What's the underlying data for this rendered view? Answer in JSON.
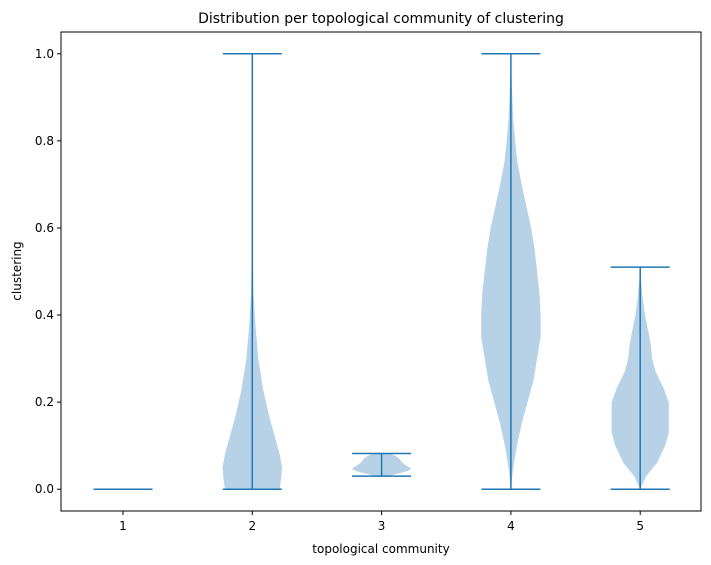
{
  "chart_data": {
    "type": "violin",
    "title": "Distribution per topological community of clustering",
    "xlabel": "topological community",
    "ylabel": "clustering",
    "categories": [
      "1",
      "2",
      "3",
      "4",
      "5"
    ],
    "ylim": [
      -0.05,
      1.05
    ],
    "yticks": [
      0.0,
      0.2,
      0.4,
      0.6,
      0.8,
      1.0
    ],
    "ytick_labels": [
      "0.0",
      "0.2",
      "0.4",
      "0.6",
      "0.8",
      "1.0"
    ],
    "grid": false,
    "colors": {
      "violin_fill": "#b7d1e6",
      "line": "#1f77b4"
    },
    "violins": [
      {
        "category": "1",
        "min": 0.0,
        "max": 0.0,
        "profile": []
      },
      {
        "category": "2",
        "min": 0.0,
        "max": 1.0,
        "profile": [
          [
            0.0,
            0.23
          ],
          [
            0.02,
            0.24
          ],
          [
            0.05,
            0.25
          ],
          [
            0.08,
            0.23
          ],
          [
            0.12,
            0.19
          ],
          [
            0.17,
            0.14
          ],
          [
            0.23,
            0.09
          ],
          [
            0.3,
            0.05
          ],
          [
            0.38,
            0.025
          ],
          [
            0.45,
            0.01
          ],
          [
            0.55,
            0.004
          ],
          [
            0.7,
            0.0015
          ],
          [
            0.85,
            0.0005
          ],
          [
            1.0,
            0.0
          ]
        ]
      },
      {
        "category": "3",
        "min": 0.03,
        "max": 0.082,
        "profile": [
          [
            0.03,
            0.05
          ],
          [
            0.036,
            0.14
          ],
          [
            0.042,
            0.22
          ],
          [
            0.048,
            0.25
          ],
          [
            0.054,
            0.21
          ],
          [
            0.062,
            0.17
          ],
          [
            0.07,
            0.15
          ],
          [
            0.076,
            0.12
          ],
          [
            0.082,
            0.07
          ]
        ]
      },
      {
        "category": "4",
        "min": 0.0,
        "max": 1.0,
        "profile": [
          [
            0.0,
            0.0
          ],
          [
            0.05,
            0.02
          ],
          [
            0.1,
            0.05
          ],
          [
            0.15,
            0.09
          ],
          [
            0.2,
            0.14
          ],
          [
            0.25,
            0.19
          ],
          [
            0.3,
            0.22
          ],
          [
            0.35,
            0.25
          ],
          [
            0.4,
            0.25
          ],
          [
            0.45,
            0.24
          ],
          [
            0.5,
            0.22
          ],
          [
            0.55,
            0.2
          ],
          [
            0.6,
            0.17
          ],
          [
            0.65,
            0.13
          ],
          [
            0.7,
            0.09
          ],
          [
            0.75,
            0.055
          ],
          [
            0.8,
            0.035
          ],
          [
            0.85,
            0.02
          ],
          [
            0.9,
            0.012
          ],
          [
            0.95,
            0.005
          ],
          [
            1.0,
            0.0
          ]
        ]
      },
      {
        "category": "5",
        "min": 0.0,
        "max": 0.51,
        "profile": [
          [
            0.0,
            0.0
          ],
          [
            0.03,
            0.05
          ],
          [
            0.06,
            0.14
          ],
          [
            0.1,
            0.21
          ],
          [
            0.13,
            0.24
          ],
          [
            0.16,
            0.24
          ],
          [
            0.2,
            0.24
          ],
          [
            0.23,
            0.2
          ],
          [
            0.27,
            0.13
          ],
          [
            0.3,
            0.1
          ],
          [
            0.33,
            0.09
          ],
          [
            0.36,
            0.07
          ],
          [
            0.4,
            0.04
          ],
          [
            0.44,
            0.02
          ],
          [
            0.48,
            0.008
          ],
          [
            0.51,
            0.0
          ]
        ]
      }
    ]
  }
}
